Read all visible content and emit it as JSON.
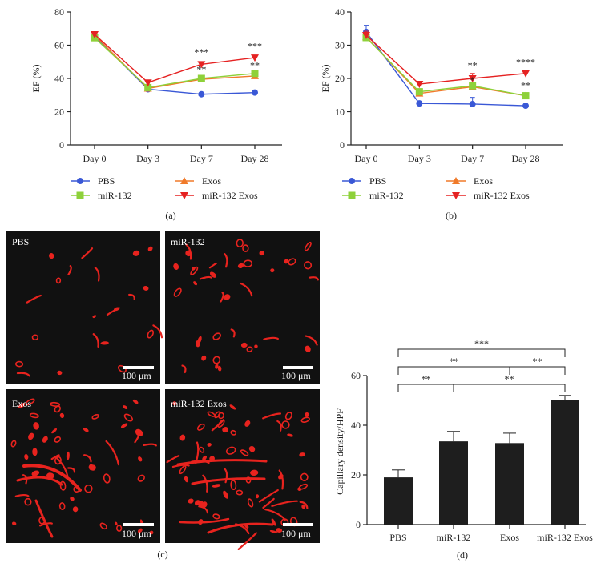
{
  "colors": {
    "PBS": "#3a58d6",
    "Exos": "#f07a2a",
    "miR-132": "#8ed13a",
    "miR-132 Exos": "#e52222",
    "bar": "#1e1e1e",
    "vessel": "#e8231e",
    "tissue": "#111111"
  },
  "figure": {
    "caption_a": "(a)",
    "caption_b": "(b)",
    "caption_c": "(c)",
    "caption_d": "(d)"
  },
  "legend": {
    "items": [
      {
        "label": "PBS",
        "marker": "circle"
      },
      {
        "label": "Exos",
        "marker": "triangle-up"
      },
      {
        "label": "miR-132",
        "marker": "square"
      },
      {
        "label": "miR-132 Exos",
        "marker": "triangle-down"
      }
    ]
  },
  "micrographs": {
    "panels": [
      {
        "label": "PBS",
        "scale_bar": "100 μm"
      },
      {
        "label": "miR-132",
        "scale_bar": "100 μm"
      },
      {
        "label": "Exos",
        "scale_bar": "100 μm"
      },
      {
        "label": "miR-132 Exos",
        "scale_bar": "100 μm"
      }
    ]
  },
  "chart_data": [
    {
      "type": "line",
      "panel": "a",
      "categories": [
        "Day 0",
        "Day 3",
        "Day 7",
        "Day 28"
      ],
      "ylabel": "EF (%)",
      "ylim": [
        0,
        80
      ],
      "yticks": [
        0,
        20,
        40,
        60,
        80
      ],
      "series": [
        {
          "name": "PBS",
          "values": [
            65.5,
            33.5,
            30.5,
            31.5
          ],
          "errors": [
            1.5,
            1,
            1,
            0.8
          ],
          "marker": "circle"
        },
        {
          "name": "Exos",
          "values": [
            66,
            34,
            39.5,
            41.5
          ],
          "errors": [
            1.5,
            1,
            1.5,
            1.2
          ],
          "marker": "triangle-up"
        },
        {
          "name": "miR-132",
          "values": [
            64.5,
            34.5,
            40,
            43
          ],
          "errors": [
            1.2,
            1,
            1.5,
            1.2
          ],
          "marker": "square"
        },
        {
          "name": "miR-132 Exos",
          "values": [
            66.5,
            37.5,
            48.5,
            52.5
          ],
          "errors": [
            1.5,
            1,
            1.2,
            1.2
          ],
          "marker": "triangle-down"
        }
      ],
      "annotations": [
        {
          "x": "Day 7",
          "text": "***",
          "y": 54
        },
        {
          "x": "Day 7",
          "text": "**",
          "y": 43.5
        },
        {
          "x": "Day 28",
          "text": "***",
          "y": 57.5
        },
        {
          "x": "Day 28",
          "text": "**",
          "y": 46
        }
      ]
    },
    {
      "type": "line",
      "panel": "b",
      "categories": [
        "Day 0",
        "Day 3",
        "Day 7",
        "Day 28"
      ],
      "ylabel": "EF (%)",
      "ylim": [
        0,
        40
      ],
      "yticks": [
        0,
        10,
        20,
        30,
        40
      ],
      "series": [
        {
          "name": "PBS",
          "values": [
            34,
            12.5,
            12.3,
            11.8
          ],
          "errors": [
            2,
            0.5,
            2,
            0.5
          ],
          "marker": "circle"
        },
        {
          "name": "Exos",
          "values": [
            32.5,
            15.5,
            17.5,
            14.8
          ],
          "errors": [
            1,
            0.8,
            1,
            0.6
          ],
          "marker": "triangle-up"
        },
        {
          "name": "miR-132",
          "values": [
            32.3,
            16,
            17.8,
            14.8
          ],
          "errors": [
            1,
            0.8,
            0.8,
            0.6
          ],
          "marker": "square"
        },
        {
          "name": "miR-132 Exos",
          "values": [
            33,
            18.3,
            20,
            21.5
          ],
          "errors": [
            1.2,
            0.5,
            1.5,
            0.6
          ],
          "marker": "triangle-down"
        }
      ],
      "annotations": [
        {
          "x": "Day 7",
          "text": "**",
          "y": 23
        },
        {
          "x": "Day 7",
          "text": "*",
          "y": 18.5
        },
        {
          "x": "Day 28",
          "text": "****",
          "y": 24
        },
        {
          "x": "Day 28",
          "text": "**",
          "y": 17
        }
      ]
    },
    {
      "type": "bar",
      "panel": "d",
      "categories": [
        "PBS",
        "miR-132",
        "Exos",
        "miR-132 Exos"
      ],
      "values": [
        19,
        33.5,
        32.8,
        50.2
      ],
      "errors": [
        3,
        4,
        4,
        1.8
      ],
      "ylabel": "Capillary density/HPF",
      "ylim": [
        0,
        60
      ],
      "yticks": [
        0,
        20,
        40,
        60
      ],
      "significance": [
        {
          "from": "PBS",
          "to": "miR-132",
          "text": "**"
        },
        {
          "from": "miR-132",
          "to": "miR-132 Exos",
          "text": "**"
        },
        {
          "from": "PBS",
          "to": "Exos",
          "text": "**"
        },
        {
          "from": "Exos",
          "to": "miR-132 Exos",
          "text": "**"
        },
        {
          "from": "PBS",
          "to": "miR-132 Exos",
          "text": "***"
        }
      ]
    }
  ]
}
